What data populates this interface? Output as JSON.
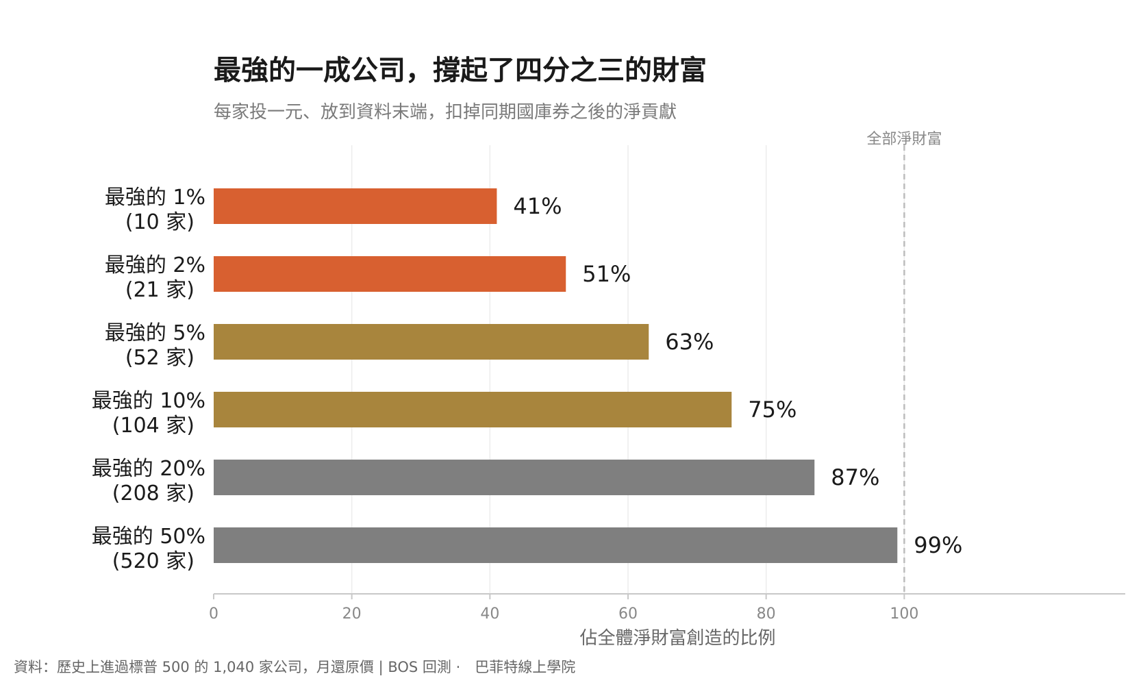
{
  "title": "最強的一成公司，撐起了四分之三的財富",
  "subtitle": "每家投一元、放到資料末端，扣掉同期國庫券之後的淨貢獻",
  "source": "資料：歷史上進過標普 500 的 1,040 家公司，月還原價 | BOS 回測 ·　巴菲特線上學院",
  "chart_data": {
    "type": "bar",
    "orientation": "horizontal",
    "xlabel": "佔全體淨財富創造的比例",
    "xlim": [
      0,
      132
    ],
    "xticks": [
      0,
      20,
      40,
      60,
      80,
      100
    ],
    "grid": true,
    "reference_line": {
      "value": 100,
      "label": "全部淨財富",
      "style": "dashed"
    },
    "categories": [
      {
        "line1": "最強的 1%",
        "line2": "(10 家)"
      },
      {
        "line1": "最強的 2%",
        "line2": "(21 家)"
      },
      {
        "line1": "最強的 5%",
        "line2": "(52 家)"
      },
      {
        "line1": "最強的 10%",
        "line2": "(104 家)"
      },
      {
        "line1": "最強的 20%",
        "line2": "(208 家)"
      },
      {
        "line1": "最強的 50%",
        "line2": "(520 家)"
      }
    ],
    "values": [
      41,
      51,
      63,
      75,
      87,
      99
    ],
    "value_labels": [
      "41%",
      "51%",
      "63%",
      "75%",
      "87%",
      "99%"
    ],
    "colors": [
      "#D86030",
      "#D86030",
      "#A8853D",
      "#A8853D",
      "#7F7F7F",
      "#7F7F7F"
    ],
    "axis_color": "#c8c8c8",
    "grid_color": "#ececec",
    "tick_color": "#888888",
    "reference_color": "#bdbdbd"
  }
}
